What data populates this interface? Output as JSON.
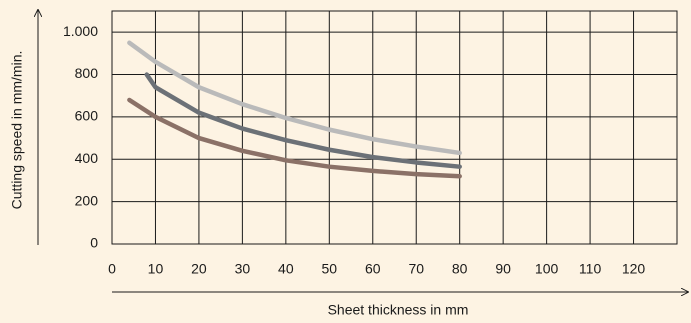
{
  "chart_data": {
    "type": "line",
    "xlabel": "Sheet thickness in mm",
    "ylabel": "Cutting speed in mm/min.",
    "xlim": [
      0,
      130
    ],
    "ylim": [
      0,
      1100
    ],
    "xticks": [
      0,
      10,
      20,
      30,
      40,
      50,
      60,
      70,
      80,
      90,
      100,
      110,
      120
    ],
    "yticks": [
      0,
      200,
      400,
      600,
      800,
      {
        "value": 1000,
        "label": "1.000"
      }
    ],
    "grid": true,
    "series": [
      {
        "color": "#bababa",
        "x": [
          4,
          10,
          20,
          30,
          40,
          50,
          60,
          70,
          80
        ],
        "values": [
          950,
          860,
          740,
          660,
          595,
          540,
          495,
          460,
          430
        ]
      },
      {
        "color": "#6c7177",
        "x": [
          8,
          10,
          20,
          30,
          40,
          50,
          60,
          70,
          80
        ],
        "values": [
          800,
          740,
          620,
          545,
          490,
          445,
          410,
          385,
          365
        ]
      },
      {
        "color": "#8b7167",
        "x": [
          4,
          10,
          20,
          30,
          40,
          50,
          60,
          70,
          80
        ],
        "values": [
          680,
          600,
          500,
          440,
          395,
          365,
          345,
          330,
          320
        ]
      }
    ]
  }
}
